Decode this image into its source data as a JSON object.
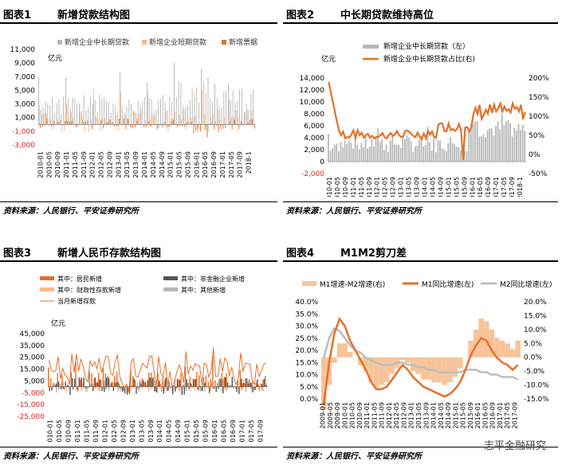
{
  "panels": [
    {
      "num": "图表1",
      "name": "新增贷款结构图",
      "source": "资料来源：人民银行、平安证券研究所",
      "chart_data": {
        "type": "bar",
        "unit": "亿元",
        "legend": [
          "新增企业中长期贷款",
          "新增企业短期贷款",
          "新增票据"
        ],
        "colors": [
          "#b8b8b8",
          "#f2b98a",
          "#e4702a"
        ],
        "ylim": [
          -3000,
          11000
        ],
        "yticks": [
          "11,000",
          "9,000",
          "7,000",
          "5,000",
          "3,000",
          "1,000",
          "-1,000",
          "-3,000"
        ],
        "ytick_values": [
          11000,
          9000,
          7000,
          5000,
          3000,
          1000,
          -1000,
          -3000
        ],
        "xticks": [
          "2010-01",
          "2010-05",
          "2010-09",
          "2011-01",
          "2011-05",
          "2011-09",
          "2012-01",
          "2012-05",
          "2012-09",
          "2013-01",
          "2013-05",
          "2013-09",
          "2014-01",
          "2014-05",
          "2014-09",
          "2015-01",
          "2015-05",
          "2015-09",
          "2016-01",
          "2016-05",
          "2016-09",
          "2017-01",
          "2017-05",
          "2017-09",
          "2018-1"
        ]
      }
    },
    {
      "num": "图表2",
      "name": "中长期贷款维持高位",
      "source": "资料来源：人民银行、平安证券研究所",
      "chart_data": {
        "type": "bar+line",
        "unit": "亿元",
        "legend": [
          "新增企业中长期贷款（左）",
          "新增企业中长期贷款占比(右)"
        ],
        "colors": [
          "#b8b8b8",
          "#e4702a"
        ],
        "ylim": [
          -2000,
          14000
        ],
        "yticks": [
          "14,000",
          "12,000",
          "10,000",
          "8,000",
          "6,000",
          "4,000",
          "2,000",
          "0",
          "-2,000"
        ],
        "ytick_values": [
          14000,
          12000,
          10000,
          8000,
          6000,
          4000,
          2000,
          0,
          -2000
        ],
        "y2ticks": [
          "200%",
          "150%",
          "100%",
          "50%",
          "0%",
          "-50%"
        ],
        "y2tick_values": [
          200,
          150,
          100,
          50,
          0,
          -50
        ],
        "xticks": [
          "2010-01",
          "2010-05",
          "2010-09",
          "2011-01",
          "2011-05",
          "2011-09",
          "2012-01",
          "2012-05",
          "2012-09",
          "2013-01",
          "2013-05",
          "2013-09",
          "2014-01",
          "2014-05",
          "2014-09",
          "2015-01",
          "2015-05",
          "2015-09",
          "2016-01",
          "2016-05",
          "2016-09",
          "2017-01",
          "2017-05",
          "2017-09",
          "2018-1"
        ]
      }
    },
    {
      "num": "图表3",
      "name": "新增人民币存款结构图",
      "source": "资料来源：人民银行、平安证券研究所",
      "chart_data": {
        "type": "bar+line",
        "unit": "亿元",
        "legend": [
          "其中：居民新增",
          "其中：非金融企业新增",
          "其中：财政性存款新增",
          "其中：其他新增",
          "当月新增存款"
        ],
        "colors": [
          "#e4702a",
          "#555555",
          "#f2b98a",
          "#b8b8b8",
          "#e4702a"
        ],
        "ylim": [
          -25000,
          45000
        ],
        "yticks": [
          "45,000",
          "35,000",
          "25,000",
          "15,000",
          "5,000",
          "-5,000",
          "-15,000",
          "-25,000"
        ],
        "ytick_values": [
          45000,
          35000,
          25000,
          15000,
          5000,
          -5000,
          -15000,
          -25000
        ],
        "xticks": [
          "2010-01",
          "2010-05",
          "2010-09",
          "2011-01",
          "2011-05",
          "2011-09",
          "2012-01",
          "2012-05",
          "2012-09",
          "2013-01",
          "2013-05",
          "2013-09",
          "2014-01",
          "2014-05",
          "2014-09",
          "2015-01",
          "2015-05",
          "2015-09",
          "2016-01",
          "2016-05",
          "2016-09",
          "2017-01",
          "2017-05",
          "2017-09"
        ]
      }
    },
    {
      "num": "图表4",
      "name": "M1M2剪刀差",
      "source": "资料来源：人民银行、平安证券研究所",
      "chart_data": {
        "type": "area+line",
        "legend": [
          "M1增速-M2增速(右)",
          "M1同比增速(左)",
          "M2同比增速(左)"
        ],
        "colors": [
          "#f7c49a",
          "#e4702a",
          "#bdbdbd"
        ],
        "ylim": [
          0,
          40
        ],
        "yticks": [
          "40.0%",
          "35.0%",
          "30.0%",
          "25.0%",
          "20.0%",
          "15.0%",
          "10.0%",
          "5.0%",
          "0.0%"
        ],
        "ytick_values": [
          40,
          35,
          30,
          25,
          20,
          15,
          10,
          5,
          0
        ],
        "y2lim": [
          -15,
          20
        ],
        "y2ticks": [
          "20.0%",
          "15.0%",
          "10.0%",
          "5.0%",
          "0.0%",
          "-5.0%",
          "-10.0%",
          "-15.0%"
        ],
        "y2tick_values": [
          20,
          15,
          10,
          5,
          0,
          -5,
          -10,
          -15
        ],
        "xticks": [
          "2009-01",
          "2009-05",
          "2009-09",
          "2010-01",
          "2010-05",
          "2010-09",
          "2011-01",
          "2011-05",
          "2011-09",
          "2012-01",
          "2012-05",
          "2012-09",
          "2013-01",
          "2013-05",
          "2013-09",
          "2014-01",
          "2014-05",
          "2014-09",
          "2015-01",
          "2015-05",
          "2015-09",
          "2016-01",
          "2016-05",
          "2016-09",
          "2017-01",
          "2017-05",
          "2017-09"
        ],
        "m1": [
          -2,
          15,
          27,
          33,
          30,
          24,
          20,
          16,
          12,
          7,
          4,
          4,
          5,
          8,
          11,
          14,
          12,
          9,
          7,
          5,
          4,
          3,
          2,
          1,
          2,
          4,
          7,
          12,
          18,
          22,
          25,
          24,
          20,
          17,
          15,
          14,
          12,
          14
        ],
        "m2": [
          17,
          25,
          29,
          28,
          25,
          22,
          20,
          19,
          17,
          16,
          15,
          14,
          14,
          14,
          15,
          15,
          14,
          14,
          13,
          13,
          12,
          12,
          11,
          11,
          11,
          11,
          11,
          12,
          12,
          12,
          11,
          11,
          10,
          10,
          9,
          9,
          9,
          8
        ],
        "spread": [
          -19,
          -10,
          -2,
          5,
          5,
          2,
          0,
          -3,
          -5,
          -9,
          -11,
          -10,
          -9,
          -6,
          -4,
          -1,
          -2,
          -5,
          -6,
          -8,
          -8,
          -9,
          -9,
          -10,
          -9,
          -7,
          -4,
          0,
          6,
          10,
          14,
          13,
          10,
          7,
          6,
          5,
          3,
          6
        ]
      }
    }
  ],
  "watermark": "志平金融研究"
}
